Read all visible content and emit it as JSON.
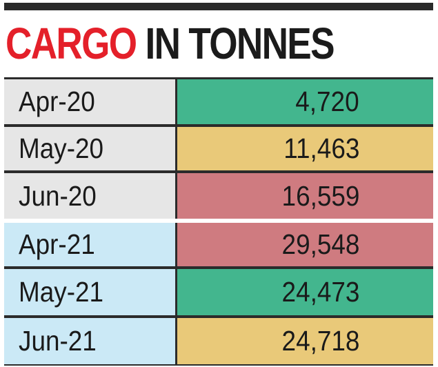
{
  "title": {
    "accent": "CARGO",
    "rest": "IN TONNES"
  },
  "colors": {
    "title_accent": "#e4202a",
    "month_2020_bg": "#e6e6e6",
    "month_2021_bg": "#cbe9f6",
    "value_green": "#43b68e",
    "value_yellow": "#e9c979",
    "value_red": "#cf7b80",
    "grid": "#2b2b2b"
  },
  "chart_data": {
    "type": "table",
    "title": "CARGO IN TONNES",
    "columns": [
      "",
      ""
    ],
    "rows": [
      {
        "month": "Apr-20",
        "value": "4,720",
        "color": "green"
      },
      {
        "month": "May-20",
        "value": "11,463",
        "color": "yellow"
      },
      {
        "month": "Jun-20",
        "value": "16,559",
        "color": "red"
      },
      {
        "month": "Apr-21",
        "value": "29,548",
        "color": "red"
      },
      {
        "month": "May-21",
        "value": "24,473",
        "color": "green"
      },
      {
        "month": "Jun-21",
        "value": "24,718",
        "color": "yellow"
      }
    ],
    "values": [
      4720,
      11463,
      16559,
      29548,
      24473,
      24718
    ]
  }
}
